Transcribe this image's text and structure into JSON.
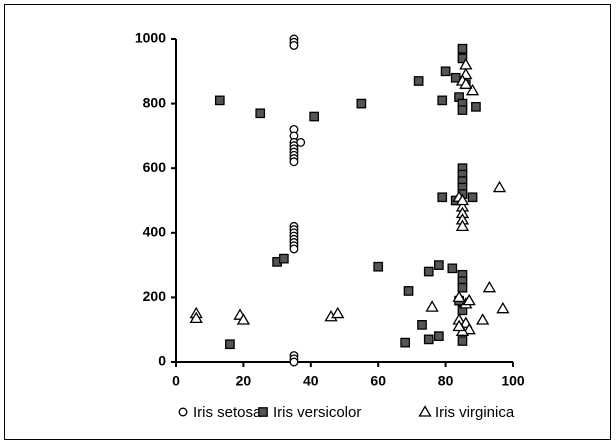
{
  "chart_data": {
    "type": "scatter",
    "xlim": [
      0,
      100
    ],
    "xticks": [
      0,
      20,
      40,
      60,
      80,
      100
    ],
    "ylim": [
      0,
      1000
    ],
    "yticks": [
      0,
      200,
      400,
      600,
      800,
      1000
    ],
    "grid": false,
    "legend": "bottom",
    "series": [
      {
        "name": "Iris setosa",
        "color": "#ffffff",
        "marker": "circle",
        "x": [
          35,
          35,
          35,
          35,
          35,
          35,
          35,
          35,
          35,
          35,
          35,
          35,
          37,
          35,
          35,
          35,
          35,
          35,
          35,
          35,
          35,
          35,
          35,
          35
        ],
        "values": [
          1000,
          990,
          980,
          720,
          700,
          680,
          670,
          660,
          650,
          640,
          630,
          620,
          680,
          420,
          410,
          400,
          390,
          380,
          370,
          360,
          350,
          20,
          10,
          0
        ]
      },
      {
        "name": "Iris versicolor",
        "color": "#555555",
        "marker": "square",
        "x": [
          13,
          25,
          41,
          55,
          72,
          80,
          79,
          83,
          84,
          85,
          85,
          86,
          85,
          85,
          89,
          85,
          85,
          85,
          85,
          85,
          79,
          88,
          83,
          30,
          32,
          60,
          78,
          82,
          75,
          85,
          85,
          85,
          69,
          16,
          68,
          73,
          75,
          78,
          85,
          84,
          85
        ],
        "values": [
          810,
          770,
          760,
          800,
          870,
          900,
          810,
          880,
          820,
          970,
          940,
          860,
          800,
          780,
          790,
          600,
          580,
          560,
          540,
          520,
          510,
          510,
          500,
          310,
          320,
          295,
          300,
          290,
          280,
          270,
          250,
          230,
          220,
          55,
          60,
          115,
          70,
          80,
          65,
          190,
          160
        ]
      },
      {
        "name": "Iris virginica",
        "color": "#ffffff",
        "marker": "triangle",
        "x": [
          6,
          6,
          19,
          20,
          46,
          48,
          76,
          84,
          86,
          84,
          86,
          87,
          85,
          87,
          88,
          86,
          86,
          85,
          86,
          84,
          85,
          85,
          85,
          85,
          85,
          96,
          93,
          97,
          91,
          84
        ],
        "values": [
          150,
          135,
          145,
          130,
          140,
          150,
          170,
          200,
          180,
          130,
          120,
          100,
          95,
          190,
          840,
          920,
          890,
          870,
          860,
          510,
          480,
          460,
          440,
          420,
          500,
          540,
          230,
          165,
          130,
          110
        ]
      }
    ]
  }
}
